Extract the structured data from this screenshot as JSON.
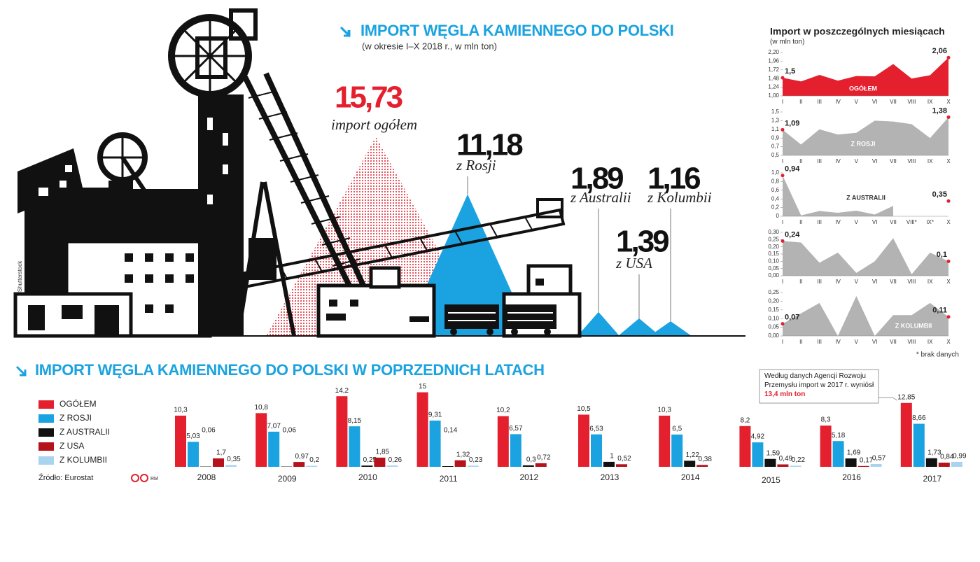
{
  "header": {
    "title": "IMPORT WĘGLA KAMIENNEGO DO POLSKI",
    "subtitle": "(w okresie I–X 2018 r., w mln ton)"
  },
  "credit": "Shutterstock",
  "monthly_panel": {
    "title": "Import w poszczególnych miesiącach",
    "unit": "(w mln ton)",
    "footnote": "* brak danych"
  },
  "chart_data": [
    {
      "type": "mountain",
      "categories": [
        "import ogółem",
        "z Rosji",
        "z Australii",
        "z USA",
        "z Kolumbii"
      ],
      "values": [
        15.73,
        11.18,
        1.89,
        1.39,
        1.16
      ],
      "value_labels": [
        "15,73",
        "11,18",
        "1,89",
        "1,39",
        "1,16"
      ],
      "colors": [
        "#e4202e",
        "#1aa3e0",
        "#1aa3e0",
        "#1aa3e0",
        "#1aa3e0"
      ]
    },
    {
      "type": "area",
      "name": "OGÓŁEM",
      "color": "#e4202e",
      "categories": [
        "I",
        "II",
        "III",
        "IV",
        "V",
        "VI",
        "VII",
        "VIII",
        "IX",
        "X"
      ],
      "values": [
        1.5,
        1.4,
        1.58,
        1.42,
        1.55,
        1.54,
        1.88,
        1.48,
        1.57,
        2.06
      ],
      "value_labels": [
        "1,5",
        null,
        null,
        null,
        null,
        null,
        null,
        null,
        null,
        "2,06"
      ],
      "ylim": [
        1.0,
        2.2
      ],
      "yticks": [
        {
          "value": 1.0,
          "label": "1,00"
        },
        {
          "value": 1.24,
          "label": "1,24"
        },
        {
          "value": 1.48,
          "label": "1,48"
        },
        {
          "value": 1.72,
          "label": "1,72"
        },
        {
          "value": 1.96,
          "label": "1,96"
        },
        {
          "value": 2.2,
          "label": "2,20"
        }
      ]
    },
    {
      "type": "area",
      "name": "Z ROSJI",
      "color": "#b3b3b3",
      "categories": [
        "I",
        "II",
        "III",
        "IV",
        "V",
        "VI",
        "VII",
        "VIII",
        "IX",
        "X"
      ],
      "values": [
        1.09,
        0.75,
        1.1,
        0.98,
        1.02,
        1.3,
        1.28,
        1.22,
        0.9,
        1.38
      ],
      "value_labels": [
        "1,09",
        null,
        null,
        null,
        null,
        null,
        null,
        null,
        null,
        "1,38"
      ],
      "ylim": [
        0.5,
        1.5
      ],
      "yticks": [
        {
          "value": 0.5,
          "label": "0,5"
        },
        {
          "value": 0.7,
          "label": "0,7"
        },
        {
          "value": 0.9,
          "label": "0,9"
        },
        {
          "value": 1.1,
          "label": "1,1"
        },
        {
          "value": 1.3,
          "label": "1,3"
        },
        {
          "value": 1.5,
          "label": "1,5"
        }
      ]
    },
    {
      "type": "area",
      "name": "Z AUSTRALII",
      "color": "#b3b3b3",
      "categories": [
        "I",
        "II",
        "III",
        "IV",
        "V",
        "VI",
        "VII",
        "VIII*",
        "IX*",
        "X"
      ],
      "values": [
        0.94,
        0.02,
        0.12,
        0.08,
        0.13,
        0.04,
        0.24,
        null,
        null,
        0.35
      ],
      "value_labels": [
        "0,94",
        null,
        null,
        null,
        null,
        null,
        null,
        null,
        null,
        "0,35"
      ],
      "ylim": [
        0,
        1.0
      ],
      "yticks": [
        0,
        {
          "value": 0.2,
          "label": "0,2"
        },
        {
          "value": 0.4,
          "label": "0,4"
        },
        {
          "value": 0.6,
          "label": "0,6"
        },
        {
          "value": 0.8,
          "label": "0,8"
        },
        {
          "value": 1.0,
          "label": "1,0"
        }
      ]
    },
    {
      "type": "area",
      "color": "#b3b3b3",
      "categories": [
        "I",
        "II",
        "III",
        "IV",
        "V",
        "VI",
        "VII",
        "VIII",
        "IX",
        "X"
      ],
      "values": [
        0.24,
        0.23,
        0.09,
        0.16,
        0.02,
        0.1,
        0.26,
        0.01,
        0.16,
        0.1
      ],
      "value_labels": [
        "0,24",
        null,
        null,
        null,
        null,
        null,
        null,
        null,
        null,
        "0,1"
      ],
      "ylim": [
        0,
        0.3
      ],
      "yticks": [
        {
          "value": 0,
          "label": "0,00"
        },
        {
          "value": 0.05,
          "label": "0,05"
        },
        {
          "value": 0.1,
          "label": "0,10"
        },
        {
          "value": 0.15,
          "label": "0,15"
        },
        {
          "value": 0.2,
          "label": "0,20"
        },
        {
          "value": 0.25,
          "label": "0,25"
        },
        {
          "value": 0.3,
          "label": "0,30"
        }
      ]
    },
    {
      "type": "area",
      "name": "Z KOLUMBII",
      "color": "#b3b3b3",
      "categories": [
        "I",
        "II",
        "III",
        "IV",
        "V",
        "VI",
        "VII",
        "VIII",
        "IX",
        "X"
      ],
      "values": [
        0.07,
        0.13,
        0.19,
        0.0,
        0.23,
        0.0,
        0.12,
        0.12,
        0.19,
        0.11
      ],
      "value_labels": [
        "0,07",
        null,
        null,
        null,
        null,
        null,
        null,
        null,
        null,
        "0,11"
      ],
      "ylim": [
        0,
        0.25
      ],
      "yticks": [
        {
          "value": 0,
          "label": "0,00"
        },
        {
          "value": 0.05,
          "label": "0,05"
        },
        {
          "value": 0.1,
          "label": "0,10"
        },
        {
          "value": 0.15,
          "label": "0,15"
        },
        {
          "value": 0.2,
          "label": "0,20"
        },
        {
          "value": 0.25,
          "label": "0,25"
        }
      ]
    },
    {
      "type": "bar",
      "title": "IMPORT WĘGLA KAMIENNEGO DO POLSKI W POPRZEDNICH LATACH",
      "categories": [
        "2008",
        "2009",
        "2010",
        "2011",
        "2012",
        "2013",
        "2014",
        "2015",
        "2016",
        "2017"
      ],
      "series": [
        {
          "name": "OGÓŁEM",
          "color": "#e4202e",
          "values": [
            10.3,
            10.8,
            14.2,
            15,
            10.2,
            10.5,
            10.3,
            8.2,
            8.3,
            12.85
          ],
          "value_labels": [
            "10,3",
            "10,8",
            "14,2",
            "15",
            "10,2",
            "10,5",
            "10,3",
            "8,2",
            "8,3",
            "12,85"
          ]
        },
        {
          "name": "Z ROSJI",
          "color": "#1aa3e0",
          "values": [
            5.03,
            7.07,
            8.15,
            9.31,
            6.57,
            6.53,
            6.5,
            4.92,
            5.18,
            8.66
          ],
          "value_labels": [
            "5,03",
            "7,07",
            "8,15",
            "9,31",
            "6,57",
            "6,53",
            "6,5",
            "4,92",
            "5,18",
            "8,66"
          ]
        },
        {
          "name": "Z AUSTRALII",
          "color": "#111111",
          "values": [
            0.06,
            0.06,
            0.25,
            0.14,
            0.3,
            1,
            1.22,
            1.59,
            1.69,
            1.73
          ],
          "value_labels": [
            "0,06",
            "0,06",
            "0,25",
            "0,14",
            "0,3",
            "1",
            "1,22",
            "1,59",
            "1,69",
            "1,73"
          ]
        },
        {
          "name": "Z USA",
          "color": "#b5121b",
          "values": [
            1.7,
            0.97,
            1.85,
            1.32,
            0.72,
            0.52,
            0.38,
            0.49,
            0.17,
            0.84
          ],
          "value_labels": [
            "1,7",
            "0,97",
            "1,85",
            "1,32",
            "0,72",
            "0,52",
            "0,38",
            "0,49",
            "0,17",
            "0,84"
          ]
        },
        {
          "name": "Z KOLUMBII",
          "color": "#a9d4ef",
          "values": [
            0.35,
            0.2,
            0.26,
            0.23,
            null,
            null,
            null,
            0.22,
            0.57,
            0.99
          ],
          "value_labels": [
            "0,35",
            "0,2",
            "0,26",
            "0,23",
            null,
            null,
            null,
            "0,22",
            "0,57",
            "0,99"
          ]
        }
      ],
      "annotation": {
        "text": "Według danych Agencji Rozwoju Przemysłu import w 2017 r. wyniósł",
        "highlight": "13,4 mln ton"
      },
      "source": "Źródło: Eurostat",
      "author": "RM"
    }
  ]
}
